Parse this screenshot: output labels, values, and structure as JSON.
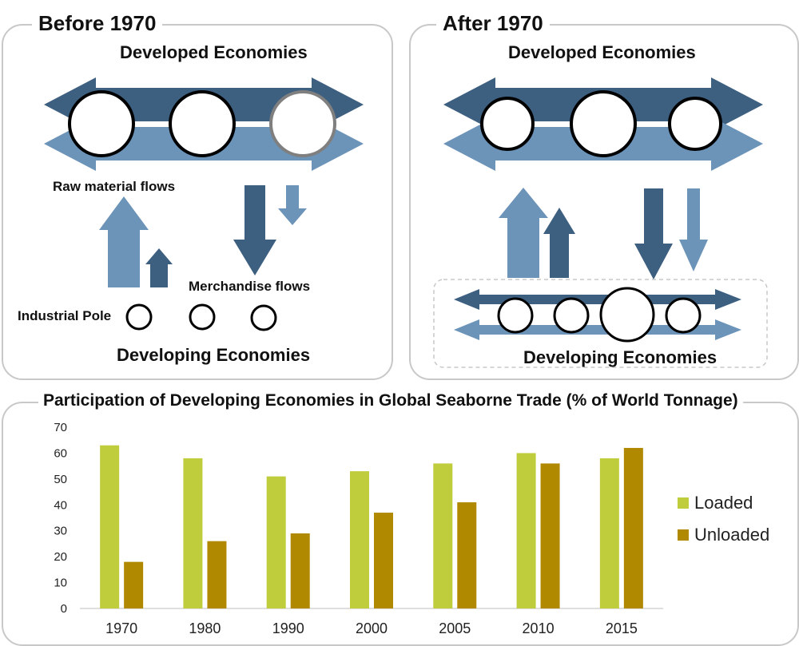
{
  "before": {
    "title": "Before 1970",
    "top_label": "Developed Economies",
    "bottom_label": "Developing Economies",
    "raw_label": "Raw material flows",
    "merch_label": "Merchandise flows",
    "pole_label": "Industrial Pole"
  },
  "after": {
    "title": "After 1970",
    "top_label": "Developed Economies",
    "bottom_label": "Developing Economies"
  },
  "colors": {
    "dark_arrow": "#3d5f80",
    "light_arrow": "#6c93b8",
    "loaded": "#bfcc3c",
    "unloaded": "#b08900"
  },
  "chart_data": {
    "type": "bar",
    "title": "Participation of Developing Economies in Global Seaborne Trade (% of World Tonnage)",
    "categories": [
      "1970",
      "1980",
      "1990",
      "2000",
      "2005",
      "2010",
      "2015"
    ],
    "series": [
      {
        "name": "Loaded",
        "values": [
          63,
          58,
          51,
          53,
          56,
          60,
          58
        ]
      },
      {
        "name": "Unloaded",
        "values": [
          18,
          26,
          29,
          37,
          41,
          56,
          62
        ]
      }
    ],
    "ylim": [
      0,
      70
    ],
    "yticks": [
      "0",
      "10",
      "20",
      "30",
      "40",
      "50",
      "60",
      "70"
    ],
    "grid": false,
    "legend_position": "right"
  }
}
